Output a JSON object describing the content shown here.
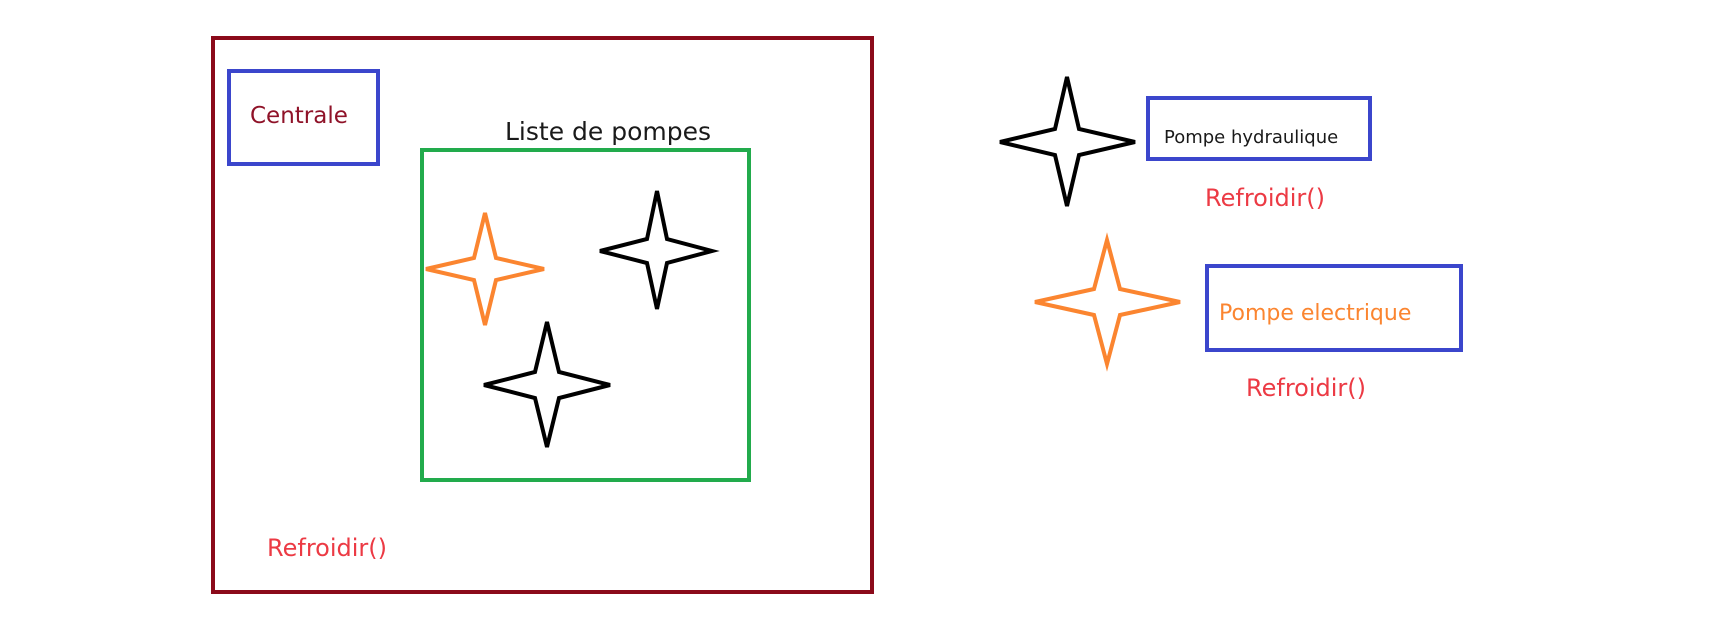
{
  "colors": {
    "central_border": "#8b0a1a",
    "label_box_border": "#3b46cc",
    "list_border": "#22ab4c",
    "method_text": "#ec3a44",
    "hydraulic_pump": "#000000",
    "electric_pump": "#fb8530",
    "central_label": "#8f1228",
    "list_label": "#1a1a1a"
  },
  "central": {
    "label": "Centrale",
    "method": "Refroidir()"
  },
  "pump_list": {
    "label": "Liste de pompes"
  },
  "legend": {
    "hydraulic": {
      "label": "Pompe hydraulique",
      "method": "Refroidir()",
      "icon": "black-four-point-star-icon"
    },
    "electric": {
      "label": "Pompe electrique",
      "method": "Refroidir()",
      "icon": "orange-four-point-star-icon"
    }
  }
}
